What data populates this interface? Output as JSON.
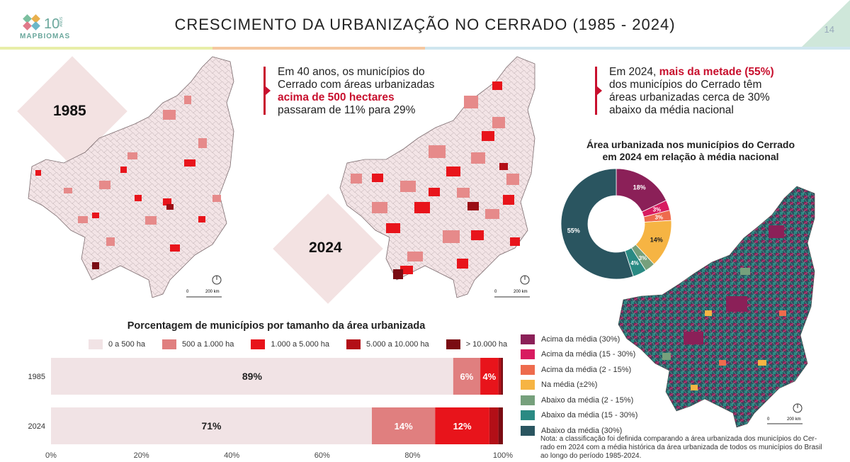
{
  "header": {
    "logo_number": "10",
    "logo_anos": "ANOS",
    "brand": "MAPBIOMAS",
    "title": "CRESCIMENTO DA URBANIZAÇÃO NO CERRADO (1985 - 2024)",
    "page_number": "14"
  },
  "maps": {
    "year_1985": "1985",
    "year_2024": "2024",
    "scale_zero": "0",
    "scale_200": "200 km"
  },
  "callout_left": {
    "line1": "Em 40 anos, os municípios do",
    "line2": "Cerrado com áreas urbanizadas",
    "highlight": "acima de 500 hectares",
    "line4": "passaram de 11% para 29%"
  },
  "callout_right": {
    "prefix": "Em 2024, ",
    "highlight": "mais da metade (55%)",
    "line2": "dos municípios do Cerrado têm",
    "line3": "áreas urbanizadas cerca de 30%",
    "line4": "abaixo da média nacional"
  },
  "donut": {
    "title_line1": "Área urbanizada nos municípios do Cerrado",
    "title_line2": "em 2024 em relação à média nacional"
  },
  "legend_right": [
    {
      "label": "Acima da média (30%)",
      "color": "#8b2058"
    },
    {
      "label": "Acima da média (15 - 30%)",
      "color": "#d81b60"
    },
    {
      "label": "Acima da média (2 - 15%)",
      "color": "#ee6b4d"
    },
    {
      "label": "Na média (±2%)",
      "color": "#f6b443"
    },
    {
      "label": "Abaixo da média (2 - 15%)",
      "color": "#76a07c"
    },
    {
      "label": "Abaixo da média (15 - 30%)",
      "color": "#2a8a83"
    },
    {
      "label": "Abaixo da média (30%)",
      "color": "#2a5560"
    }
  ],
  "note": {
    "line1": "Nota: a classificação foi definida comparando a área urbanizada dos municípios do Cer-",
    "line2": "rado em 2024 com a média histórica da área urbanizada de todos os municípios do Brasil",
    "line3": "ao longo do período 1985-2024."
  },
  "chart_data": [
    {
      "type": "bar",
      "orientation": "horizontal-stacked",
      "title": "Porcentagem de municípios por tamanho da área urbanizada",
      "categories": [
        "1985",
        "2024"
      ],
      "series": [
        {
          "name": "0 a 500 ha",
          "color": "#f1e3e5",
          "values": [
            89,
            71
          ],
          "labels": [
            "89%",
            "71%"
          ]
        },
        {
          "name": "500 a 1.000 ha",
          "color": "#e07f7f",
          "values": [
            6,
            14
          ],
          "labels": [
            "6%",
            "14%"
          ]
        },
        {
          "name": "1.000 a 5.000 ha",
          "color": "#e8141b",
          "values": [
            4,
            12
          ],
          "labels": [
            "4%",
            "12%"
          ]
        },
        {
          "name": "5.000 a 10.000 ha",
          "color": "#b30f17",
          "values": [
            0.6,
            2
          ],
          "labels": [
            "",
            ""
          ]
        },
        {
          "name": "> 10.000 ha",
          "color": "#7a0c13",
          "values": [
            0.4,
            1
          ],
          "labels": [
            "",
            ""
          ]
        }
      ],
      "xlim": [
        0,
        100
      ],
      "xticks": [
        "0%",
        "20%",
        "40%",
        "60%",
        "80%",
        "100%"
      ]
    },
    {
      "type": "pie",
      "title": "Área urbanizada nos municípios do Cerrado em 2024 em relação à média nacional",
      "categories": [
        "Acima da média (30%)",
        "Acima da média (15 - 30%)",
        "Acima da média (2 - 15%)",
        "Na média (±2%)",
        "Abaixo da média (2 - 15%)",
        "Abaixo da média (15 - 30%)",
        "Abaixo da média (30%)"
      ],
      "values": [
        18,
        3,
        3,
        14,
        3,
        4,
        55
      ],
      "labels": [
        "18%",
        "3%",
        "3%",
        "14%",
        "3%",
        "4%",
        "55%"
      ],
      "colors": [
        "#8b2058",
        "#d81b60",
        "#ee6b4d",
        "#f6b443",
        "#76a07c",
        "#2a8a83",
        "#2a5560"
      ]
    }
  ]
}
